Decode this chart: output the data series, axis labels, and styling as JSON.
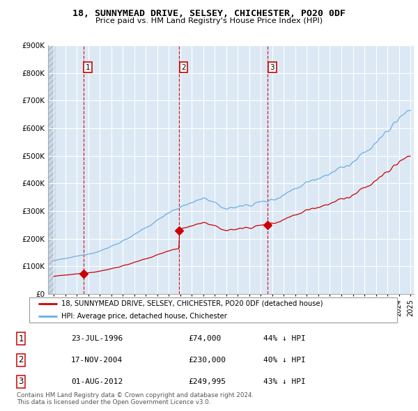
{
  "title": "18, SUNNYMEAD DRIVE, SELSEY, CHICHESTER, PO20 0DF",
  "subtitle": "Price paid vs. HM Land Registry's House Price Index (HPI)",
  "xlim": [
    1993.5,
    2025.3
  ],
  "ylim": [
    0,
    900000
  ],
  "yticks": [
    0,
    100000,
    200000,
    300000,
    400000,
    500000,
    600000,
    700000,
    800000,
    900000
  ],
  "ytick_labels": [
    "£0",
    "£100K",
    "£200K",
    "£300K",
    "£400K",
    "£500K",
    "£600K",
    "£700K",
    "£800K",
    "£900K"
  ],
  "sale_dates": [
    1996.56,
    2004.88,
    2012.58
  ],
  "sale_prices": [
    74000,
    230000,
    249995
  ],
  "sale_labels": [
    "1",
    "2",
    "3"
  ],
  "legend_line1": "18, SUNNYMEAD DRIVE, SELSEY, CHICHESTER, PO20 0DF (detached house)",
  "legend_line2": "HPI: Average price, detached house, Chichester",
  "table_rows": [
    [
      "1",
      "23-JUL-1996",
      "£74,000",
      "44% ↓ HPI"
    ],
    [
      "2",
      "17-NOV-2004",
      "£230,000",
      "40% ↓ HPI"
    ],
    [
      "3",
      "01-AUG-2012",
      "£249,995",
      "43% ↓ HPI"
    ]
  ],
  "footer": "Contains HM Land Registry data © Crown copyright and database right 2024.\nThis data is licensed under the Open Government Licence v3.0.",
  "hpi_color": "#6aaee0",
  "sale_color": "#cc0000",
  "bg_color": "#dce9f5",
  "hatch_color": "#c8d8e8"
}
